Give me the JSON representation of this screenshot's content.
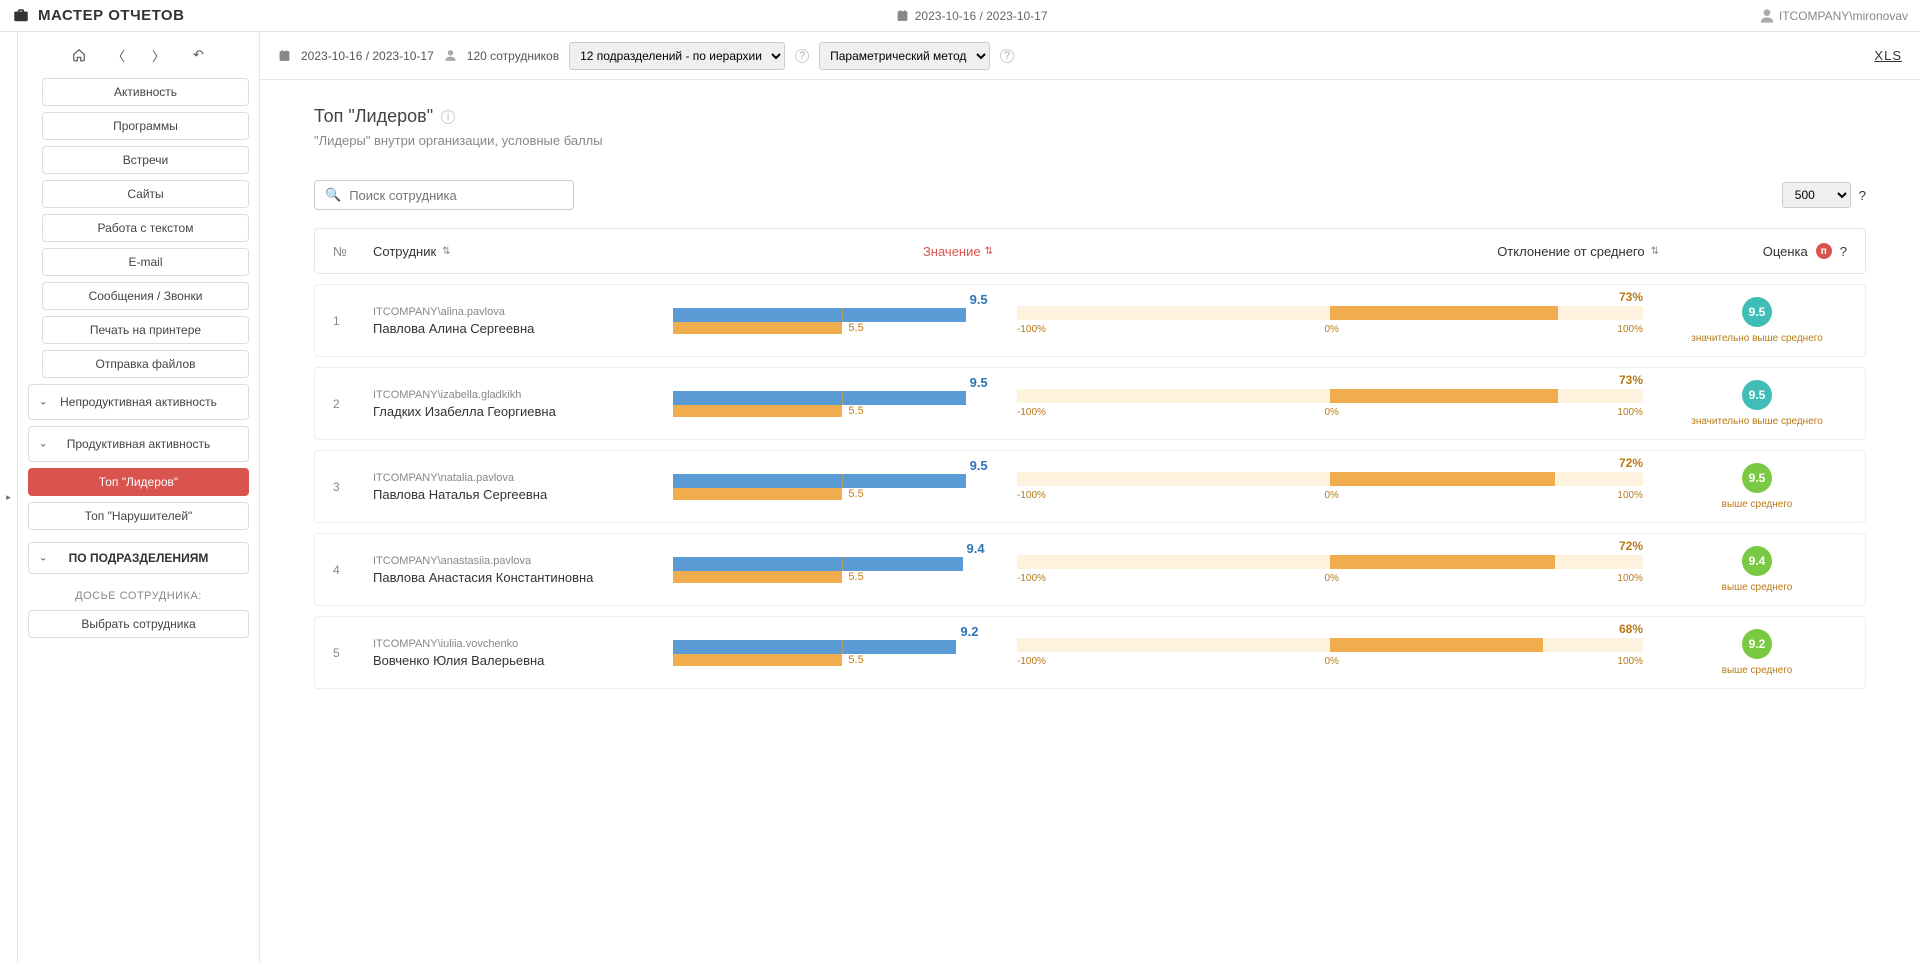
{
  "app_title": "МАСТЕР ОТЧЕТОВ",
  "header_date": "2023-10-16 / 2023-10-17",
  "header_user": "ITCOMPANY\\mironovav",
  "toolbar": {
    "date_range": "2023-10-16 / 2023-10-17",
    "employees": "120 сотрудников",
    "dept_select": "12 подразделений - по иерархии",
    "method_select": "Параметрический метод",
    "xls": "XLS"
  },
  "sidebar": {
    "items": [
      "Активность",
      "Программы",
      "Встречи",
      "Сайты",
      "Работа с текстом",
      "E-mail",
      "Сообщения / Звонки",
      "Печать на принтере",
      "Отправка файлов"
    ],
    "group_nonprod": "Непродуктивная активность",
    "group_prod": "Продуктивная активность",
    "top_leaders": "Топ \"Лидеров\"",
    "top_violators": "Топ \"Нарушителей\"",
    "by_dept": "ПО ПОДРАЗДЕЛЕНИЯМ",
    "dossier_label": "ДОСЬЕ СОТРУДНИКА:",
    "select_emp": "Выбрать сотрудника"
  },
  "page": {
    "title": "Топ \"Лидеров\"",
    "subtitle": "\"Лидеры\" внутри организации, условные баллы",
    "search_placeholder": "Поиск сотрудника",
    "page_size": "500"
  },
  "columns": {
    "n": "№",
    "employee": "Сотрудник",
    "value": "Значение",
    "deviation": "Отклонение от среднего",
    "rating": "Оценка"
  },
  "bar_style": {
    "max_value": 10.0,
    "avg_value": 5.5,
    "primary_color": "#5b9bd5",
    "avg_color": "#f0ad4e",
    "value_text_color": "#2e75b6",
    "avg_text_color": "#c77c0a",
    "dev_track": "#fdf2dd",
    "dev_fill": "#f0ad4e",
    "dev_text": "#b87a17",
    "dev_min": "-100%",
    "dev_mid": "0%",
    "dev_max": "100%"
  },
  "rating_colors": {
    "high": "#3fbdb6",
    "above": "#7ac943"
  },
  "rows": [
    {
      "n": "1",
      "login": "ITCOMPANY\\alina.pavlova",
      "name": "Павлова Алина Сергеевна",
      "value": 9.5,
      "avg": 5.5,
      "dev_pct": 73,
      "score": "9.5",
      "score_class": "score-teal",
      "score_text": "значительно выше среднего"
    },
    {
      "n": "2",
      "login": "ITCOMPANY\\izabella.gladkikh",
      "name": "Гладких Изабелла Георгиевна",
      "value": 9.5,
      "avg": 5.5,
      "dev_pct": 73,
      "score": "9.5",
      "score_class": "score-teal",
      "score_text": "значительно выше среднего"
    },
    {
      "n": "3",
      "login": "ITCOMPANY\\natalia.pavlova",
      "name": "Павлова Наталья Сергеевна",
      "value": 9.5,
      "avg": 5.5,
      "dev_pct": 72,
      "score": "9.5",
      "score_class": "score-green",
      "score_text": "выше среднего"
    },
    {
      "n": "4",
      "login": "ITCOMPANY\\anastasiia.pavlova",
      "name": "Павлова Анастасия Константиновна",
      "value": 9.4,
      "avg": 5.5,
      "dev_pct": 72,
      "score": "9.4",
      "score_class": "score-green",
      "score_text": "выше среднего"
    },
    {
      "n": "5",
      "login": "ITCOMPANY\\iuliia.vovchenko",
      "name": "Вовченко Юлия Валерьевна",
      "value": 9.2,
      "avg": 5.5,
      "dev_pct": 68,
      "score": "9.2",
      "score_class": "score-green",
      "score_text": "выше среднего"
    }
  ]
}
